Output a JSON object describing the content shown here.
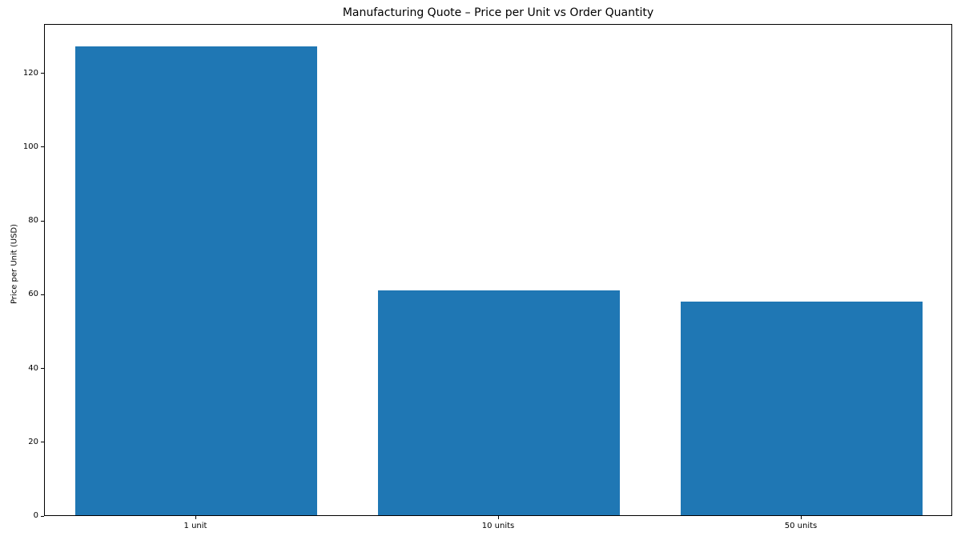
{
  "chart_data": {
    "type": "bar",
    "title": "Manufacturing Quote – Price per Unit vs Order Quantity",
    "xlabel": "",
    "ylabel": "Price per Unit (USD)",
    "categories": [
      "1 unit",
      "10 units",
      "50 units"
    ],
    "values": [
      127,
      61,
      58
    ],
    "yticks": [
      0,
      20,
      40,
      60,
      80,
      100,
      120
    ],
    "ylim": [
      0,
      133.35
    ],
    "bar_color": "#1f77b4",
    "bar_width_fraction": 0.8,
    "grid": false,
    "legend": "none",
    "spine_color": "#000000",
    "background_color": "#ffffff"
  }
}
